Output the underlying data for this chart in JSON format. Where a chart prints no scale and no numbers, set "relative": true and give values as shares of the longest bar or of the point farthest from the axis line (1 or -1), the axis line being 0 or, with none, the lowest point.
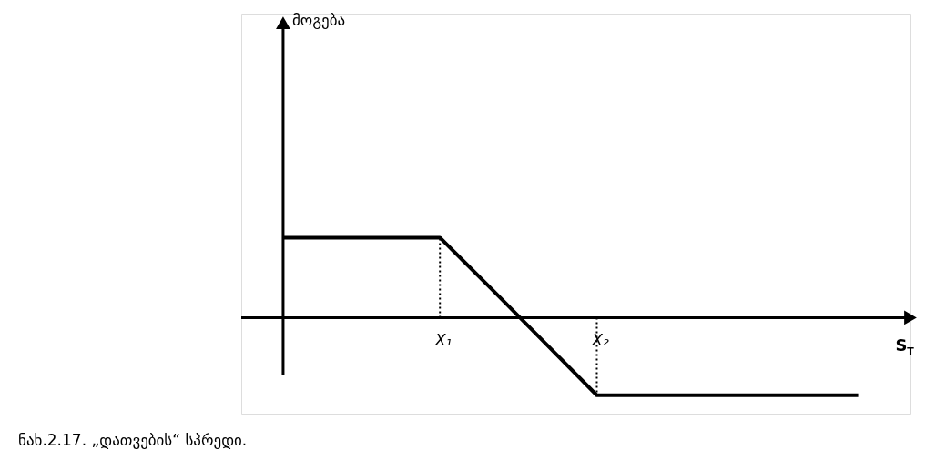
{
  "chart_data": {
    "type": "line",
    "relative": true,
    "xlabel": "S$_{T}$",
    "categories": [
      null,
      null,
      null,
      "X₁",
      null,
      null,
      "X₂",
      null,
      null,
      null,
      null,
      null
    ],
    "series": [
      {
        "color": "#000000",
        "values": [
          1,
          1,
          1,
          1,
          0.35,
          -0.31,
          -0.97,
          -0.97,
          -0.97,
          -0.97,
          -0.97,
          -0.97
        ]
      }
    ],
    "line_style": "solid",
    "ref_lines": [
      {
        "axis": "x",
        "value": "X₁",
        "line_style": "dotted",
        "color": "#000000"
      },
      {
        "axis": "x",
        "value": "X₂",
        "line_style": "dotted",
        "color": "#000000"
      }
    ],
    "annotations": [
      "მოგება",
      "ნახ.2.17. „დათვების“ სპრედი."
    ]
  }
}
